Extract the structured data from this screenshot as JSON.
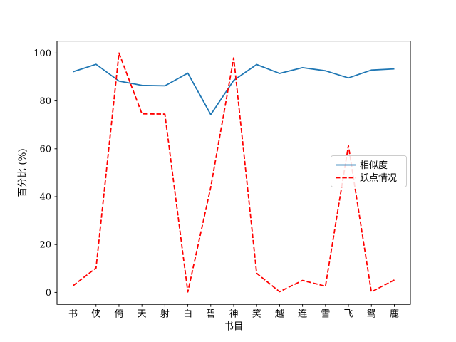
{
  "figure": {
    "background": "#ffffff",
    "frame_color": "#000000",
    "tick_color": "#000000"
  },
  "chart_data": {
    "type": "line",
    "title": "",
    "xlabel": "书目",
    "ylabel": "百分比 (%)",
    "categories": [
      "书",
      "侠",
      "倚",
      "天",
      "射",
      "白",
      "碧",
      "神",
      "笑",
      "越",
      "连",
      "雪",
      "飞",
      "鸳",
      "鹿"
    ],
    "series": [
      {
        "name": "相似度",
        "color": "#1f77b4",
        "style": "solid",
        "values": [
          92.2,
          95.3,
          88.3,
          86.5,
          86.3,
          91.6,
          74.3,
          88.6,
          95.2,
          91.5,
          93.9,
          92.6,
          89.6,
          92.9,
          93.4
        ]
      },
      {
        "name": "跃点情况",
        "color": "#ff0000",
        "style": "dashed",
        "values": [
          2.8,
          10.2,
          100,
          74.6,
          74.5,
          0.2,
          44,
          98,
          8,
          0.3,
          5,
          2.6,
          61.3,
          0.2,
          5.2
        ]
      }
    ],
    "yticks": [
      0,
      20,
      40,
      60,
      80,
      100
    ],
    "ylim": [
      -5,
      105
    ],
    "xlim_margin": 0.7,
    "grid": false,
    "legend_position": "center-right"
  },
  "legend": {
    "border_color": "#cccccc",
    "background": "rgba(255,255,255,0.85)"
  }
}
